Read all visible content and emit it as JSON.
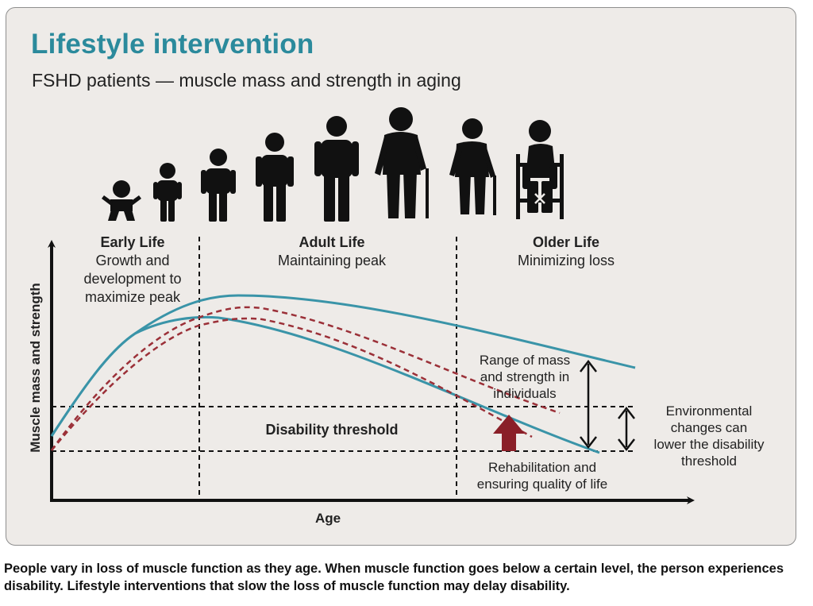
{
  "header": {
    "title": "Lifestyle intervention",
    "subtitle": "FSHD patients — muscle mass and strength in aging"
  },
  "stages": {
    "early": {
      "heading": "Early Life",
      "lines": [
        "Growth and",
        "development to",
        "maximize peak"
      ]
    },
    "adult": {
      "heading": "Adult Life",
      "lines": [
        "Maintaining peak"
      ]
    },
    "older": {
      "heading": "Older Life",
      "lines": [
        "Minimizing loss"
      ]
    }
  },
  "axes": {
    "ylabel": "Muscle mass and strength",
    "xlabel": "Age"
  },
  "annotations": {
    "disability_threshold": "Disability threshold",
    "range": [
      "Range of mass",
      "and strength in",
      "individuals"
    ],
    "environmental": [
      "Environmental",
      "changes can",
      "lower the disability",
      "threshold"
    ],
    "rehabilitation": [
      "Rehabilitation and",
      "ensuring quality of life"
    ]
  },
  "icons": [
    "baby-icon",
    "child-icon",
    "young-child-icon",
    "teen-icon",
    "adult-icon",
    "elder-cane-icon",
    "older-cane-icon",
    "wheelchair-icon"
  ],
  "colors": {
    "title": "#2b8a9c",
    "solid_curves": "#3a94a8",
    "dashed_curves": "#9b3038",
    "arrow": "#8a1f28",
    "panel": "#eeebe8"
  },
  "caption": "People vary in loss of muscle function as they age. When muscle function goes below a certain level, the person experiences disability. Lifestyle interventions that slow the loss of muscle function may delay disability."
}
